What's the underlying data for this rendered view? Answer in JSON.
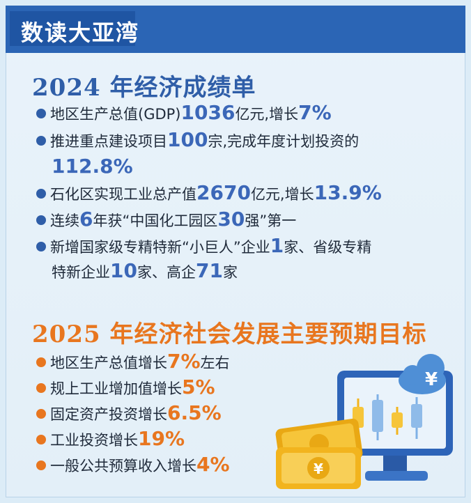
{
  "header": {
    "title": "数读大亚湾"
  },
  "section_2024": {
    "title": "2024 年经济成绩单",
    "items": [
      {
        "a": "地区生产总值(GDP)",
        "n1": "1036",
        "b": "亿元,增长",
        "n2": "7%"
      },
      {
        "a": "推进重点建设项目",
        "n1": "100",
        "b": "宗,完成年度计划投资的",
        "n2": "112.8%"
      },
      {
        "a": "石化区实现工业总产值",
        "n1": "2670",
        "b": "亿元,增长",
        "n2": "13.9%"
      },
      {
        "a": "连续",
        "n1": "6",
        "b": "年获“中国化工园区",
        "n2": "30",
        "c": "强”第一"
      },
      {
        "a": "新增国家级专精特新“小巨人”企业",
        "n1": "1",
        "b": "家、省级专精",
        "c": "特新企业",
        "n2": "10",
        "d": "家、高企",
        "n3": "71",
        "e": "家"
      }
    ]
  },
  "section_2025": {
    "title": "2025 年经济社会发展主要预期目标",
    "items": [
      {
        "a": "地区生产总值增长",
        "n": "7%",
        "b": "左右"
      },
      {
        "a": "规上工业增加值增长",
        "n": "5%",
        "b": ""
      },
      {
        "a": "固定资产投资增长",
        "n": "6.5%",
        "b": ""
      },
      {
        "a": "工业投资增长",
        "n": "19%",
        "b": ""
      },
      {
        "a": "一般公共预算收入增长",
        "n": "4%",
        "b": ""
      }
    ]
  },
  "illustration": {
    "cloud_symbol": "¥",
    "coin_symbol": "¥",
    "colors": {
      "monitor": "#2d64b8",
      "screen": "#eaf3fb",
      "gold": "#f2b41e",
      "cloud": "#4f8fd6"
    }
  }
}
